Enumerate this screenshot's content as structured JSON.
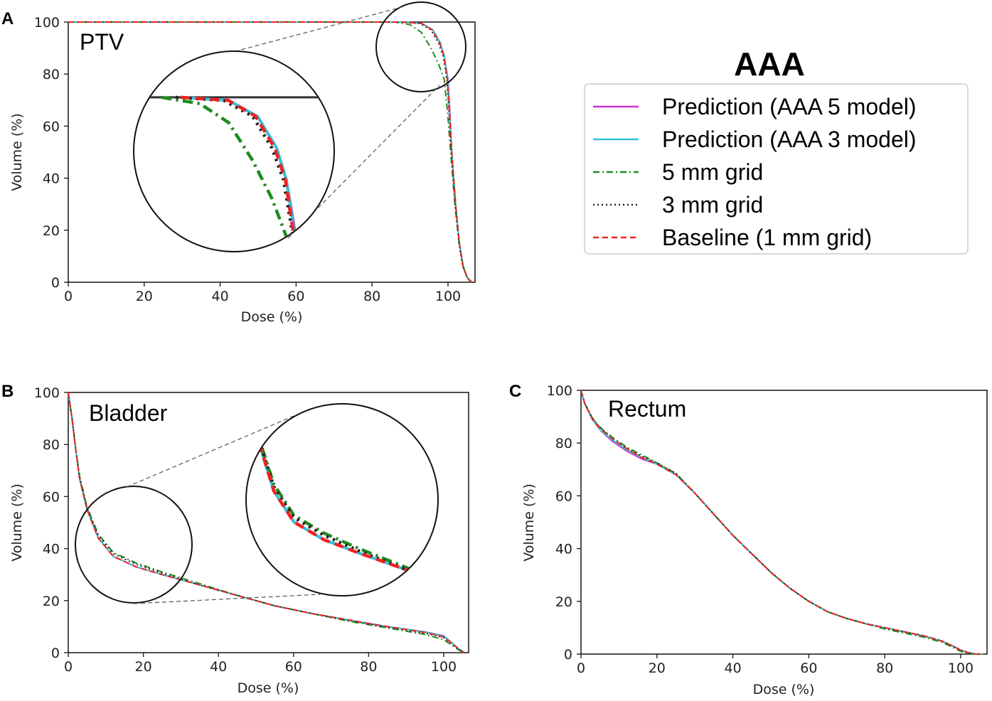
{
  "legend": {
    "title": "AAA",
    "entries": [
      {
        "label": "Prediction (AAA 5 model)",
        "color": "#cc33cc",
        "style": "solid"
      },
      {
        "label": "Prediction (AAA 3 model)",
        "color": "#33c4d6",
        "style": "solid"
      },
      {
        "label": "5 mm grid",
        "color": "#1f8a1f",
        "style": "dashdot"
      },
      {
        "label": "3 mm grid",
        "color": "#222222",
        "style": "dotted"
      },
      {
        "label": "Baseline (1 mm grid)",
        "color": "#ee2222",
        "style": "dashed"
      }
    ]
  },
  "chart_data": [
    {
      "panel": "A",
      "type": "line",
      "title": "PTV",
      "xlabel": "Dose (%)",
      "ylabel": "Volume (%)",
      "xlim": [
        0,
        107
      ],
      "ylim": [
        0,
        100
      ],
      "xticks": [
        "0",
        "20",
        "40",
        "60",
        "80",
        "100"
      ],
      "yticks": [
        "0",
        "20",
        "40",
        "60",
        "80",
        "100"
      ],
      "series": [
        {
          "name": "Prediction (AAA 5 model)",
          "x": [
            0,
            88,
            93,
            96,
            98,
            99,
            100,
            100.5,
            101,
            102,
            103,
            104,
            105,
            105.8,
            106.3
          ],
          "y": [
            100,
            100,
            99.5,
            97,
            92,
            87,
            78,
            65,
            50,
            30,
            15,
            6,
            2,
            0.5,
            0
          ]
        },
        {
          "name": "Prediction (AAA 3 model)",
          "x": [
            0,
            88,
            93,
            96,
            98,
            99,
            99.9,
            100.4,
            101,
            102,
            103,
            104,
            105,
            105.8,
            106.3
          ],
          "y": [
            100,
            100,
            99.5,
            97,
            92,
            87,
            78,
            65,
            50,
            30,
            15,
            6,
            2,
            0.5,
            0
          ]
        },
        {
          "name": "5 mm grid",
          "x": [
            0,
            86,
            90,
            93,
            95.5,
            97.5,
            99,
            99.9,
            100.7,
            101.8,
            102.9,
            104,
            105,
            105.9,
            106.4
          ],
          "y": [
            100,
            100,
            99,
            96,
            90,
            84,
            78,
            65,
            50,
            30,
            15,
            6,
            2,
            0.5,
            0
          ]
        },
        {
          "name": "3 mm grid",
          "x": [
            0,
            87.5,
            92.5,
            95.5,
            97.5,
            98.7,
            99.7,
            100.3,
            100.9,
            101.9,
            102.9,
            103.9,
            105,
            105.8,
            106.3
          ],
          "y": [
            100,
            100,
            99.5,
            97,
            92,
            87,
            78,
            65,
            50,
            30,
            15,
            6,
            2,
            0.5,
            0
          ]
        },
        {
          "name": "Baseline (1 mm grid)",
          "x": [
            0,
            88,
            93,
            95.8,
            97.8,
            98.9,
            99.8,
            100.4,
            101,
            102,
            103,
            104,
            105,
            105.8,
            106.3
          ],
          "y": [
            100,
            100,
            99.5,
            97,
            92,
            87,
            78,
            65,
            50,
            30,
            15,
            6,
            2,
            0.5,
            0
          ]
        }
      ]
    },
    {
      "panel": "B",
      "type": "line",
      "title": "Bladder",
      "xlabel": "Dose (%)",
      "ylabel": "Volume (%)",
      "xlim": [
        0,
        107
      ],
      "ylim": [
        0,
        100
      ],
      "xticks": [
        "0",
        "20",
        "40",
        "60",
        "80",
        "100"
      ],
      "yticks": [
        "0",
        "20",
        "40",
        "60",
        "80",
        "100"
      ],
      "series": [
        {
          "name": "Prediction (AAA 5 model)",
          "x": [
            0,
            1,
            2,
            3,
            5,
            8,
            12,
            18,
            25,
            35,
            45,
            55,
            65,
            75,
            85,
            95,
            100,
            102,
            104,
            105.5
          ],
          "y": [
            100,
            90,
            78,
            67,
            55,
            44,
            37,
            33,
            30,
            26,
            22,
            18,
            15,
            12.5,
            10,
            8,
            6.5,
            4,
            1.5,
            0
          ]
        },
        {
          "name": "Prediction (AAA 3 model)",
          "x": [
            0,
            1,
            2,
            3,
            5,
            8,
            12,
            18,
            25,
            35,
            45,
            55,
            65,
            75,
            85,
            95,
            100,
            102,
            104,
            105.5
          ],
          "y": [
            100,
            90,
            78,
            67,
            55,
            44,
            37,
            33,
            30,
            26,
            22,
            18,
            15,
            12.5,
            10,
            8,
            6.3,
            4,
            1.5,
            0
          ]
        },
        {
          "name": "5 mm grid",
          "x": [
            0,
            1,
            2,
            3,
            5,
            8,
            12,
            18,
            25,
            35,
            45,
            55,
            65,
            75,
            85,
            95,
            100,
            102,
            104,
            105.5
          ],
          "y": [
            100,
            90,
            78,
            68,
            56,
            45.5,
            38.5,
            34.5,
            31,
            26.5,
            22,
            18,
            15,
            12,
            9.5,
            7,
            5,
            3,
            1,
            0
          ]
        },
        {
          "name": "3 mm grid",
          "x": [
            0,
            1,
            2,
            3,
            5,
            8,
            12,
            18,
            25,
            35,
            45,
            55,
            65,
            75,
            85,
            95,
            100,
            102,
            104,
            105.5
          ],
          "y": [
            100,
            90,
            78,
            67.5,
            55.5,
            45,
            38,
            34,
            30.5,
            26,
            22,
            18,
            15,
            12.3,
            9.8,
            7.5,
            5.8,
            3.5,
            1.2,
            0
          ]
        },
        {
          "name": "Baseline (1 mm grid)",
          "x": [
            0,
            1,
            2,
            3,
            5,
            8,
            12,
            18,
            25,
            35,
            45,
            55,
            65,
            75,
            85,
            95,
            100,
            102,
            104,
            105.5
          ],
          "y": [
            100,
            90,
            78,
            67,
            55,
            44,
            37,
            33,
            30,
            26,
            22,
            18,
            15,
            12.5,
            10,
            7.8,
            6,
            3.8,
            1.3,
            0
          ]
        }
      ]
    },
    {
      "panel": "C",
      "type": "line",
      "title": "Rectum",
      "xlabel": "Dose (%)",
      "ylabel": "Volume (%)",
      "xlim": [
        0,
        107
      ],
      "ylim": [
        0,
        100
      ],
      "xticks": [
        "0",
        "20",
        "40",
        "60",
        "80",
        "100"
      ],
      "yticks": [
        "0",
        "20",
        "40",
        "60",
        "80",
        "100"
      ],
      "series": [
        {
          "name": "Prediction (AAA 5 model)",
          "x": [
            0,
            1,
            3,
            5,
            8,
            12,
            16,
            20,
            25,
            30,
            35,
            40,
            45,
            50,
            55,
            60,
            65,
            70,
            75,
            80,
            85,
            90,
            95,
            98,
            100,
            102,
            104,
            106
          ],
          "y": [
            100,
            95,
            89,
            85,
            81,
            77,
            74,
            72,
            68,
            61,
            53,
            45,
            38,
            31,
            25,
            20,
            16,
            13.5,
            11.5,
            10,
            8.5,
            7,
            5,
            3,
            1.5,
            0.5,
            0,
            0
          ]
        },
        {
          "name": "Prediction (AAA 3 model)",
          "x": [
            0,
            1,
            3,
            5,
            8,
            12,
            16,
            20,
            25,
            30,
            35,
            40,
            45,
            50,
            55,
            60,
            65,
            70,
            75,
            80,
            85,
            90,
            95,
            98,
            100,
            102,
            104,
            106
          ],
          "y": [
            100,
            95,
            89,
            85,
            81.5,
            77.5,
            74.5,
            72,
            68,
            61,
            53,
            45,
            38,
            31,
            25,
            20,
            16,
            13.5,
            11.5,
            10,
            8.5,
            7,
            5,
            3,
            1.5,
            0.5,
            0,
            0
          ]
        },
        {
          "name": "5 mm grid",
          "x": [
            0,
            1,
            3,
            5,
            8,
            12,
            16,
            20,
            25,
            30,
            35,
            40,
            45,
            50,
            55,
            60,
            65,
            70,
            75,
            80,
            85,
            90,
            95,
            98,
            100,
            102,
            104,
            106
          ],
          "y": [
            100,
            95,
            89.5,
            86,
            82.5,
            78.5,
            75.5,
            72.5,
            68.5,
            61,
            53,
            45,
            38,
            31,
            25,
            20,
            16,
            13.5,
            11.5,
            9.5,
            8,
            6.5,
            4.5,
            2.5,
            1,
            0.3,
            0,
            0
          ]
        },
        {
          "name": "3 mm grid",
          "x": [
            0,
            1,
            3,
            5,
            8,
            12,
            16,
            20,
            25,
            30,
            35,
            40,
            45,
            50,
            55,
            60,
            65,
            70,
            75,
            80,
            85,
            90,
            95,
            98,
            100,
            102,
            104,
            106
          ],
          "y": [
            100,
            95,
            89.5,
            86,
            82,
            78,
            75,
            72.5,
            68.5,
            61,
            53,
            45,
            38,
            31,
            25,
            20,
            16,
            13.5,
            11.5,
            10,
            8.5,
            7,
            5,
            3,
            1.5,
            0.5,
            0,
            0
          ]
        },
        {
          "name": "Baseline (1 mm grid)",
          "x": [
            0,
            1,
            3,
            5,
            8,
            12,
            16,
            20,
            25,
            30,
            35,
            40,
            45,
            50,
            55,
            60,
            65,
            70,
            75,
            80,
            85,
            90,
            95,
            98,
            100,
            102,
            104,
            106
          ],
          "y": [
            100,
            95,
            89,
            85.5,
            82,
            78,
            74.5,
            72,
            68,
            61,
            53,
            45,
            38,
            31,
            25,
            20,
            16,
            13.5,
            11.5,
            10,
            8.5,
            7,
            5,
            3,
            1.5,
            0.5,
            0,
            0
          ]
        }
      ]
    }
  ]
}
